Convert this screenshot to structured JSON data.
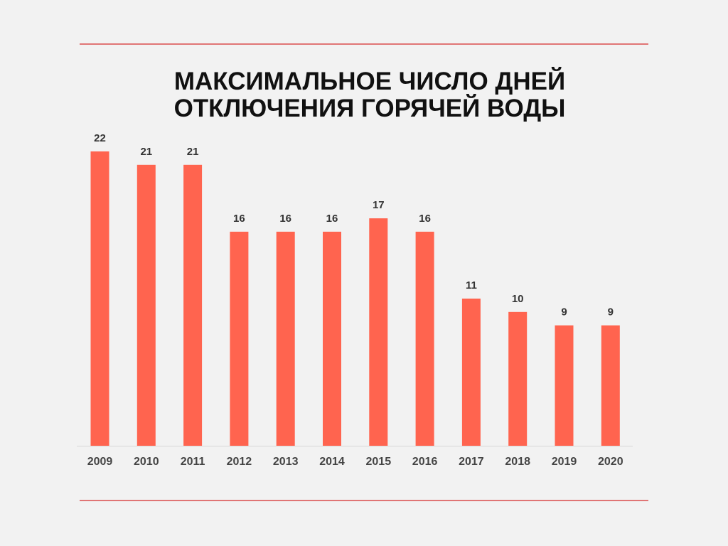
{
  "chart_data": {
    "type": "bar",
    "title": "МАКСИМАЛЬНОЕ ЧИСЛО ДНЕЙ ОТКЛЮЧЕНИЯ ГОРЯЧЕЙ ВОДЫ",
    "categories": [
      "2009",
      "2010",
      "2011",
      "2012",
      "2013",
      "2014",
      "2015",
      "2016",
      "2017",
      "2018",
      "2019",
      "2020"
    ],
    "values": [
      22,
      21,
      21,
      16,
      16,
      16,
      17,
      16,
      11,
      10,
      9,
      9
    ],
    "color": "#ff644f"
  }
}
